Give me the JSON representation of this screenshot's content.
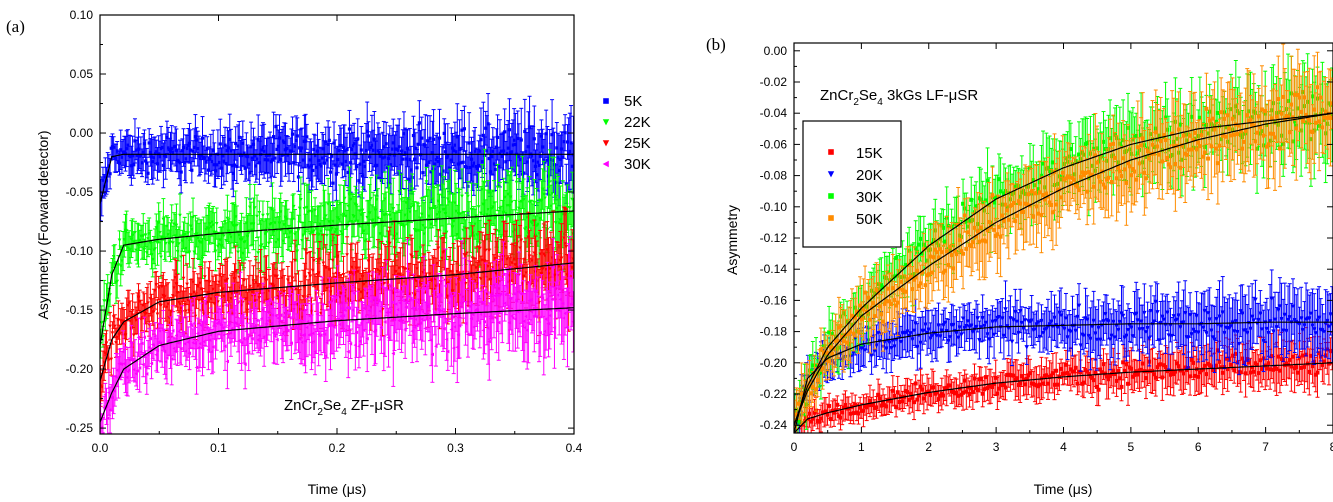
{
  "chart_data": [
    {
      "type": "scatter",
      "panel_label": "(a)",
      "annotation": "ZnCr2Se4 ZF-μSR",
      "annotation_parts": {
        "pre": "ZnCr",
        "sub1": "2",
        "mid": "Se",
        "sub2": "4",
        "post": " ZF-μSR"
      },
      "xlabel": "Time (μs)",
      "ylabel": "Asymmetry (Forward detector)",
      "xlim": [
        0.0,
        0.4
      ],
      "ylim": [
        -0.255,
        0.1
      ],
      "xticks": [
        "0.0",
        "0.1",
        "0.2",
        "0.3",
        "0.4"
      ],
      "yticks": [
        "0.10",
        "0.05",
        "0.00",
        "-0.05",
        "-0.10",
        "-0.15",
        "-0.20",
        "-0.25"
      ],
      "grid": false,
      "legend_position": "outside-right",
      "series": [
        {
          "name": "5K",
          "color": "#0000ff",
          "marker": "square",
          "x": [
            0.0,
            0.01,
            0.02,
            0.05,
            0.1,
            0.2,
            0.3,
            0.4
          ],
          "y": [
            -0.06,
            -0.02,
            -0.018,
            -0.018,
            -0.018,
            -0.018,
            -0.018,
            -0.018
          ]
        },
        {
          "name": "22K",
          "color": "#00ff00",
          "marker": "triangle-down",
          "x": [
            0.0,
            0.01,
            0.02,
            0.05,
            0.1,
            0.2,
            0.3,
            0.4
          ],
          "y": [
            -0.18,
            -0.12,
            -0.095,
            -0.09,
            -0.085,
            -0.078,
            -0.072,
            -0.066
          ]
        },
        {
          "name": "25K",
          "color": "#ff0000",
          "marker": "triangle-down",
          "x": [
            0.0,
            0.01,
            0.02,
            0.05,
            0.1,
            0.2,
            0.3,
            0.4
          ],
          "y": [
            -0.21,
            -0.175,
            -0.16,
            -0.143,
            -0.135,
            -0.127,
            -0.12,
            -0.11
          ]
        },
        {
          "name": "30K",
          "color": "#ff00ff",
          "marker": "triangle-left",
          "x": [
            0.0,
            0.01,
            0.02,
            0.05,
            0.1,
            0.2,
            0.3,
            0.4
          ],
          "y": [
            -0.245,
            -0.22,
            -0.2,
            -0.18,
            -0.168,
            -0.159,
            -0.153,
            -0.148
          ]
        }
      ]
    },
    {
      "type": "scatter",
      "panel_label": "(b)",
      "annotation": "ZnCr2Se4 3kGs LF-μSR",
      "annotation_parts": {
        "pre": "ZnCr",
        "sub1": "2",
        "mid": "Se",
        "sub2": "4",
        "post": " 3kGs LF-μSR"
      },
      "xlabel": "Time (μs)",
      "ylabel": "Asymmetry",
      "xlim": [
        0,
        8
      ],
      "ylim": [
        -0.245,
        0.005
      ],
      "xticks": [
        "0",
        "1",
        "2",
        "3",
        "4",
        "5",
        "6",
        "7",
        "8"
      ],
      "yticks": [
        "0.00",
        "-0.02",
        "-0.04",
        "-0.06",
        "-0.08",
        "-0.10",
        "-0.12",
        "-0.14",
        "-0.16",
        "-0.18",
        "-0.20",
        "-0.22",
        "-0.24"
      ],
      "grid": false,
      "legend_position": "upper-left",
      "series": [
        {
          "name": "15K",
          "color": "#ff0000",
          "marker": "square",
          "x": [
            0,
            0.2,
            0.5,
            1,
            2,
            3,
            4,
            5,
            6,
            7,
            8
          ],
          "y": [
            -0.245,
            -0.236,
            -0.232,
            -0.227,
            -0.219,
            -0.213,
            -0.209,
            -0.206,
            -0.204,
            -0.202,
            -0.2
          ]
        },
        {
          "name": "20K",
          "color": "#0000ff",
          "marker": "triangle-down",
          "x": [
            0,
            0.2,
            0.5,
            1,
            2,
            3,
            4,
            5,
            6,
            7,
            8
          ],
          "y": [
            -0.245,
            -0.21,
            -0.197,
            -0.188,
            -0.181,
            -0.177,
            -0.176,
            -0.175,
            -0.175,
            -0.174,
            -0.174
          ]
        },
        {
          "name": "30K",
          "color": "#00ff00",
          "marker": "square",
          "x": [
            0,
            0.2,
            0.5,
            1,
            2,
            3,
            4,
            5,
            6,
            7,
            8
          ],
          "y": [
            -0.24,
            -0.215,
            -0.19,
            -0.165,
            -0.125,
            -0.095,
            -0.075,
            -0.06,
            -0.05,
            -0.045,
            -0.04
          ]
        },
        {
          "name": "50K",
          "color": "#ff8c00",
          "marker": "square",
          "x": [
            0,
            0.2,
            0.5,
            1,
            2,
            3,
            4,
            5,
            6,
            7,
            8
          ],
          "y": [
            -0.24,
            -0.218,
            -0.195,
            -0.17,
            -0.138,
            -0.11,
            -0.088,
            -0.07,
            -0.057,
            -0.047,
            -0.04
          ]
        }
      ]
    }
  ]
}
